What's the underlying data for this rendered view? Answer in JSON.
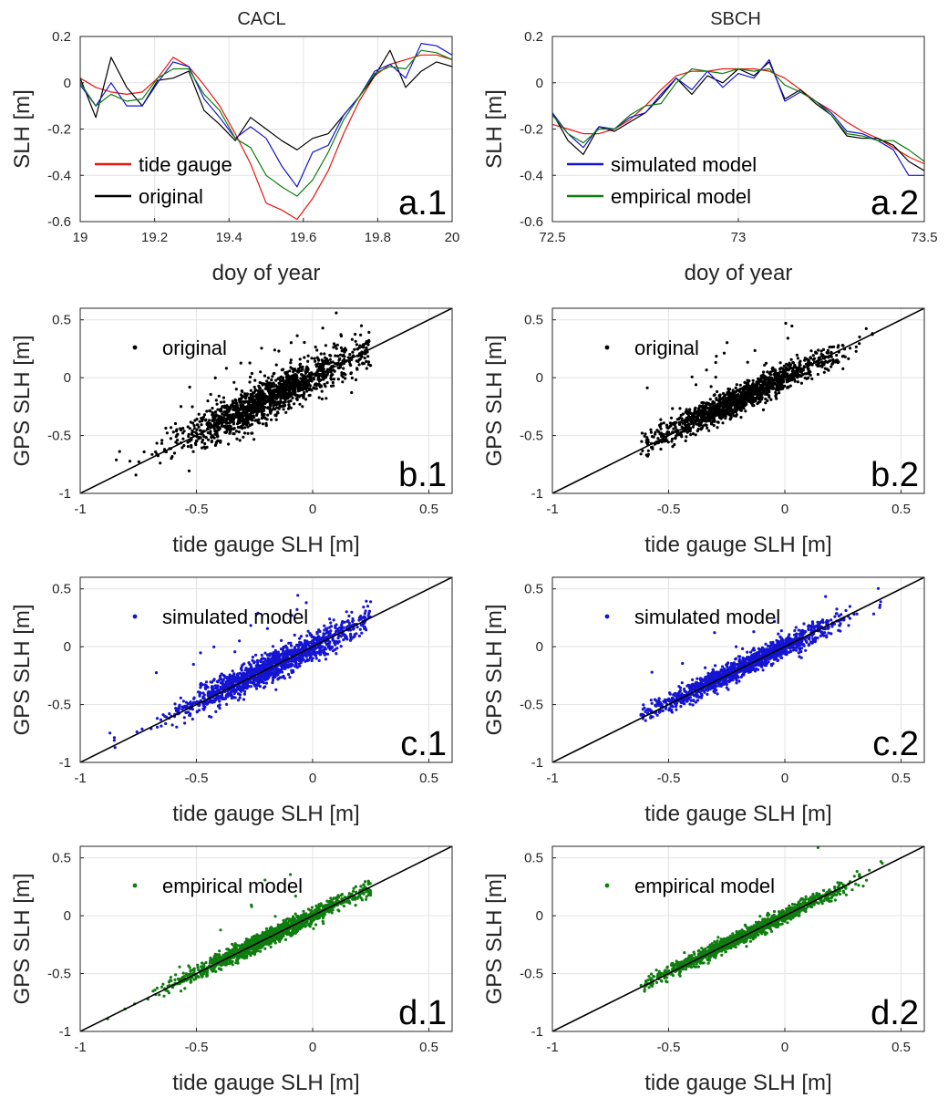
{
  "figure": {
    "column_titles": [
      "CACL",
      "SBCH"
    ],
    "colors": {
      "tide_gauge": "#e8150c",
      "original": "#000000",
      "simulated_model": "#1414d2",
      "empirical_model": "#0f7d0f"
    }
  },
  "chart_data": [
    {
      "id": "a1",
      "type": "line",
      "panel_label": "a.1",
      "column_title": "CACL",
      "xlabel": "doy of year",
      "ylabel": "SLH [m]",
      "xlim": [
        19,
        20
      ],
      "ylim": [
        -0.6,
        0.2
      ],
      "xticks": [
        19,
        19.2,
        19.4,
        19.6,
        19.8,
        20
      ],
      "xtick_labels": [
        "19",
        "19.2",
        "19.4",
        "19.6",
        "19.8",
        "20"
      ],
      "yticks": [
        -0.6,
        -0.4,
        -0.2,
        0,
        0.2
      ],
      "ytick_labels": [
        "-0.6",
        "-0.4",
        "-0.2",
        "0",
        "0.2"
      ],
      "grid": true,
      "legend": {
        "position": "bottom-left",
        "entries": [
          "tide gauge",
          "original"
        ]
      },
      "x": [
        19,
        19.042,
        19.083,
        19.125,
        19.167,
        19.208,
        19.25,
        19.292,
        19.333,
        19.375,
        19.417,
        19.458,
        19.5,
        19.542,
        19.583,
        19.625,
        19.667,
        19.708,
        19.75,
        19.792,
        19.833,
        19.875,
        19.917,
        19.958,
        20
      ],
      "series": [
        {
          "name": "tide gauge",
          "color_key": "tide_gauge",
          "values": [
            0.02,
            -0.02,
            -0.04,
            -0.05,
            -0.04,
            0.02,
            0.11,
            0.07,
            -0.01,
            -0.1,
            -0.22,
            -0.35,
            -0.52,
            -0.55,
            -0.59,
            -0.5,
            -0.38,
            -0.22,
            -0.08,
            0.03,
            0.08,
            0.1,
            0.12,
            0.12,
            0.1
          ]
        },
        {
          "name": "original",
          "color_key": "original",
          "values": [
            0.02,
            -0.15,
            0.11,
            -0.02,
            -0.1,
            0.01,
            0.02,
            0.05,
            -0.12,
            -0.18,
            -0.25,
            -0.15,
            -0.2,
            -0.25,
            -0.29,
            -0.24,
            -0.22,
            -0.14,
            -0.06,
            0.03,
            0.14,
            -0.02,
            0.05,
            0.09,
            0.07
          ]
        },
        {
          "name": "simulated model",
          "color_key": "simulated_model",
          "values": [
            -0.01,
            -0.1,
            0.0,
            -0.1,
            -0.1,
            0.0,
            0.09,
            0.07,
            -0.07,
            -0.15,
            -0.24,
            -0.19,
            -0.24,
            -0.36,
            -0.45,
            -0.3,
            -0.27,
            -0.14,
            -0.06,
            0.05,
            0.08,
            0.02,
            0.17,
            0.16,
            0.12
          ]
        },
        {
          "name": "empirical model",
          "color_key": "empirical_model",
          "values": [
            0.0,
            -0.1,
            -0.05,
            -0.08,
            -0.07,
            0.02,
            0.06,
            0.06,
            -0.05,
            -0.12,
            -0.24,
            -0.28,
            -0.4,
            -0.45,
            -0.49,
            -0.42,
            -0.3,
            -0.16,
            -0.06,
            0.04,
            0.07,
            0.06,
            0.14,
            0.13,
            0.1
          ]
        }
      ]
    },
    {
      "id": "a2",
      "type": "line",
      "panel_label": "a.2",
      "column_title": "SBCH",
      "xlabel": "doy of year",
      "ylabel": "SLH [m]",
      "xlim": [
        72.5,
        73.5
      ],
      "ylim": [
        -0.6,
        0.2
      ],
      "xticks": [
        72.5,
        73,
        73.5
      ],
      "xtick_labels": [
        "72.5",
        "73",
        "73.5"
      ],
      "yticks": [
        -0.6,
        -0.4,
        -0.2,
        0,
        0.2
      ],
      "ytick_labels": [
        "-0.6",
        "-0.4",
        "-0.2",
        "0",
        "0.2"
      ],
      "grid": true,
      "legend": {
        "position": "bottom-left",
        "entries": [
          "simulated model",
          "empirical model"
        ]
      },
      "x": [
        72.5,
        72.542,
        72.583,
        72.625,
        72.667,
        72.708,
        72.75,
        72.792,
        72.833,
        72.875,
        72.917,
        72.958,
        73,
        73.042,
        73.083,
        73.125,
        73.167,
        73.208,
        73.25,
        73.292,
        73.333,
        73.375,
        73.417,
        73.458,
        73.5
      ],
      "series": [
        {
          "name": "tide gauge",
          "color_key": "tide_gauge",
          "values": [
            -0.18,
            -0.2,
            -0.22,
            -0.22,
            -0.2,
            -0.16,
            -0.1,
            -0.03,
            0.03,
            0.05,
            0.05,
            0.06,
            0.06,
            0.06,
            0.05,
            0.02,
            -0.03,
            -0.08,
            -0.12,
            -0.17,
            -0.21,
            -0.24,
            -0.28,
            -0.32,
            -0.35
          ]
        },
        {
          "name": "original",
          "color_key": "original",
          "values": [
            -0.13,
            -0.25,
            -0.31,
            -0.19,
            -0.21,
            -0.17,
            -0.13,
            -0.06,
            0.02,
            -0.05,
            0.03,
            0.0,
            0.06,
            0.03,
            0.09,
            -0.07,
            -0.03,
            -0.09,
            -0.14,
            -0.23,
            -0.24,
            -0.24,
            -0.27,
            -0.34,
            -0.38
          ]
        },
        {
          "name": "simulated model",
          "color_key": "simulated_model",
          "values": [
            -0.13,
            -0.22,
            -0.28,
            -0.19,
            -0.2,
            -0.15,
            -0.13,
            -0.05,
            0.02,
            -0.03,
            0.05,
            -0.02,
            0.04,
            0.02,
            0.1,
            -0.08,
            -0.04,
            -0.08,
            -0.13,
            -0.21,
            -0.22,
            -0.25,
            -0.29,
            -0.4,
            -0.4
          ]
        },
        {
          "name": "empirical model",
          "color_key": "empirical_model",
          "values": [
            -0.14,
            -0.22,
            -0.26,
            -0.2,
            -0.2,
            -0.14,
            -0.1,
            -0.09,
            0.0,
            0.06,
            0.05,
            0.04,
            0.06,
            0.05,
            0.06,
            -0.01,
            -0.04,
            -0.08,
            -0.14,
            -0.22,
            -0.23,
            -0.25,
            -0.25,
            -0.29,
            -0.34
          ]
        }
      ]
    },
    {
      "id": "b1",
      "type": "scatter",
      "panel_label": "b.1",
      "xlabel": "tide gauge SLH [m]",
      "ylabel": "GPS SLH [m]",
      "xlim": [
        -1,
        0.6
      ],
      "ylim": [
        -1,
        0.6
      ],
      "xticks": [
        -1,
        -0.5,
        0,
        0.5
      ],
      "xtick_labels": [
        "-1",
        "-0.5",
        "0",
        "0.5"
      ],
      "yticks": [
        -1,
        -0.5,
        0,
        0.5
      ],
      "ytick_labels": [
        "-1",
        "-0.5",
        "0",
        "0.5"
      ],
      "grid": true,
      "legend": {
        "position": "top-left",
        "entries": [
          "original"
        ]
      },
      "reference_line": "y = x",
      "series": [
        {
          "name": "original",
          "color_key": "original",
          "n_points": 1500,
          "x_range": [
            -0.9,
            0.25
          ],
          "slope": 0.95,
          "spread": 0.085,
          "outlier_fraction": 0.02
        }
      ]
    },
    {
      "id": "b2",
      "type": "scatter",
      "panel_label": "b.2",
      "xlabel": "tide gauge SLH [m]",
      "ylabel": "GPS SLH [m]",
      "xlim": [
        -1,
        0.6
      ],
      "ylim": [
        -1,
        0.6
      ],
      "xticks": [
        -1,
        -0.5,
        0,
        0.5
      ],
      "xtick_labels": [
        "-1",
        "-0.5",
        "0",
        "0.5"
      ],
      "yticks": [
        -1,
        -0.5,
        0,
        0.5
      ],
      "ytick_labels": [
        "-1",
        "-0.5",
        "0",
        "0.5"
      ],
      "grid": true,
      "legend": {
        "position": "top-left",
        "entries": [
          "original"
        ]
      },
      "reference_line": "y = x",
      "series": [
        {
          "name": "original",
          "color_key": "original",
          "n_points": 1400,
          "x_range": [
            -0.62,
            0.42
          ],
          "slope": 0.95,
          "spread": 0.06,
          "outlier_fraction": 0.01
        }
      ]
    },
    {
      "id": "c1",
      "type": "scatter",
      "panel_label": "c.1",
      "xlabel": "tide gauge SLH [m]",
      "ylabel": "GPS SLH [m]",
      "xlim": [
        -1,
        0.6
      ],
      "ylim": [
        -1,
        0.6
      ],
      "xticks": [
        -1,
        -0.5,
        0,
        0.5
      ],
      "xtick_labels": [
        "-1",
        "-0.5",
        "0",
        "0.5"
      ],
      "yticks": [
        -1,
        -0.5,
        0,
        0.5
      ],
      "ytick_labels": [
        "-1",
        "-0.5",
        "0",
        "0.5"
      ],
      "grid": true,
      "legend": {
        "position": "top-left",
        "entries": [
          "simulated model"
        ]
      },
      "reference_line": "y = x",
      "series": [
        {
          "name": "simulated model",
          "color_key": "simulated_model",
          "n_points": 1500,
          "x_range": [
            -0.9,
            0.25
          ],
          "slope": 0.97,
          "spread": 0.06,
          "outlier_fraction": 0.01
        }
      ]
    },
    {
      "id": "c2",
      "type": "scatter",
      "panel_label": "c.2",
      "xlabel": "tide gauge SLH [m]",
      "ylabel": "GPS SLH [m]",
      "xlim": [
        -1,
        0.6
      ],
      "ylim": [
        -1,
        0.6
      ],
      "xticks": [
        -1,
        -0.5,
        0,
        0.5
      ],
      "xtick_labels": [
        "-1",
        "-0.5",
        "0",
        "0.5"
      ],
      "yticks": [
        -1,
        -0.5,
        0,
        0.5
      ],
      "ytick_labels": [
        "-1",
        "-0.5",
        "0",
        "0.5"
      ],
      "grid": true,
      "legend": {
        "position": "top-left",
        "entries": [
          "simulated model"
        ]
      },
      "reference_line": "y = x",
      "series": [
        {
          "name": "simulated model",
          "color_key": "simulated_model",
          "n_points": 1400,
          "x_range": [
            -0.62,
            0.42
          ],
          "slope": 0.97,
          "spread": 0.045,
          "outlier_fraction": 0.005
        }
      ]
    },
    {
      "id": "d1",
      "type": "scatter",
      "panel_label": "d.1",
      "xlabel": "tide gauge SLH [m]",
      "ylabel": "GPS SLH [m]",
      "xlim": [
        -1,
        0.6
      ],
      "ylim": [
        -1,
        0.6
      ],
      "xticks": [
        -1,
        -0.5,
        0,
        0.5
      ],
      "xtick_labels": [
        "-1",
        "-0.5",
        "0",
        "0.5"
      ],
      "yticks": [
        -1,
        -0.5,
        0,
        0.5
      ],
      "ytick_labels": [
        "-1",
        "-0.5",
        "0",
        "0.5"
      ],
      "grid": true,
      "legend": {
        "position": "top-left",
        "entries": [
          "empirical model"
        ]
      },
      "reference_line": "y = x",
      "series": [
        {
          "name": "empirical model",
          "color_key": "empirical_model",
          "n_points": 1500,
          "x_range": [
            -0.9,
            0.25
          ],
          "slope": 0.98,
          "spread": 0.035,
          "outlier_fraction": 0.005
        }
      ]
    },
    {
      "id": "d2",
      "type": "scatter",
      "panel_label": "d.2",
      "xlabel": "tide gauge SLH [m]",
      "ylabel": "GPS SLH [m]",
      "xlim": [
        -1,
        0.6
      ],
      "ylim": [
        -1,
        0.6
      ],
      "xticks": [
        -1,
        -0.5,
        0,
        0.5
      ],
      "xtick_labels": [
        "-1",
        "-0.5",
        "0",
        "0.5"
      ],
      "yticks": [
        -1,
        -0.5,
        0,
        0.5
      ],
      "ytick_labels": [
        "-1",
        "-0.5",
        "0",
        "0.5"
      ],
      "grid": true,
      "legend": {
        "position": "top-left",
        "entries": [
          "empirical model"
        ]
      },
      "reference_line": "y = x",
      "series": [
        {
          "name": "empirical model",
          "color_key": "empirical_model",
          "n_points": 1400,
          "x_range": [
            -0.62,
            0.42
          ],
          "slope": 0.98,
          "spread": 0.03,
          "outlier_fraction": 0.003
        }
      ]
    }
  ]
}
